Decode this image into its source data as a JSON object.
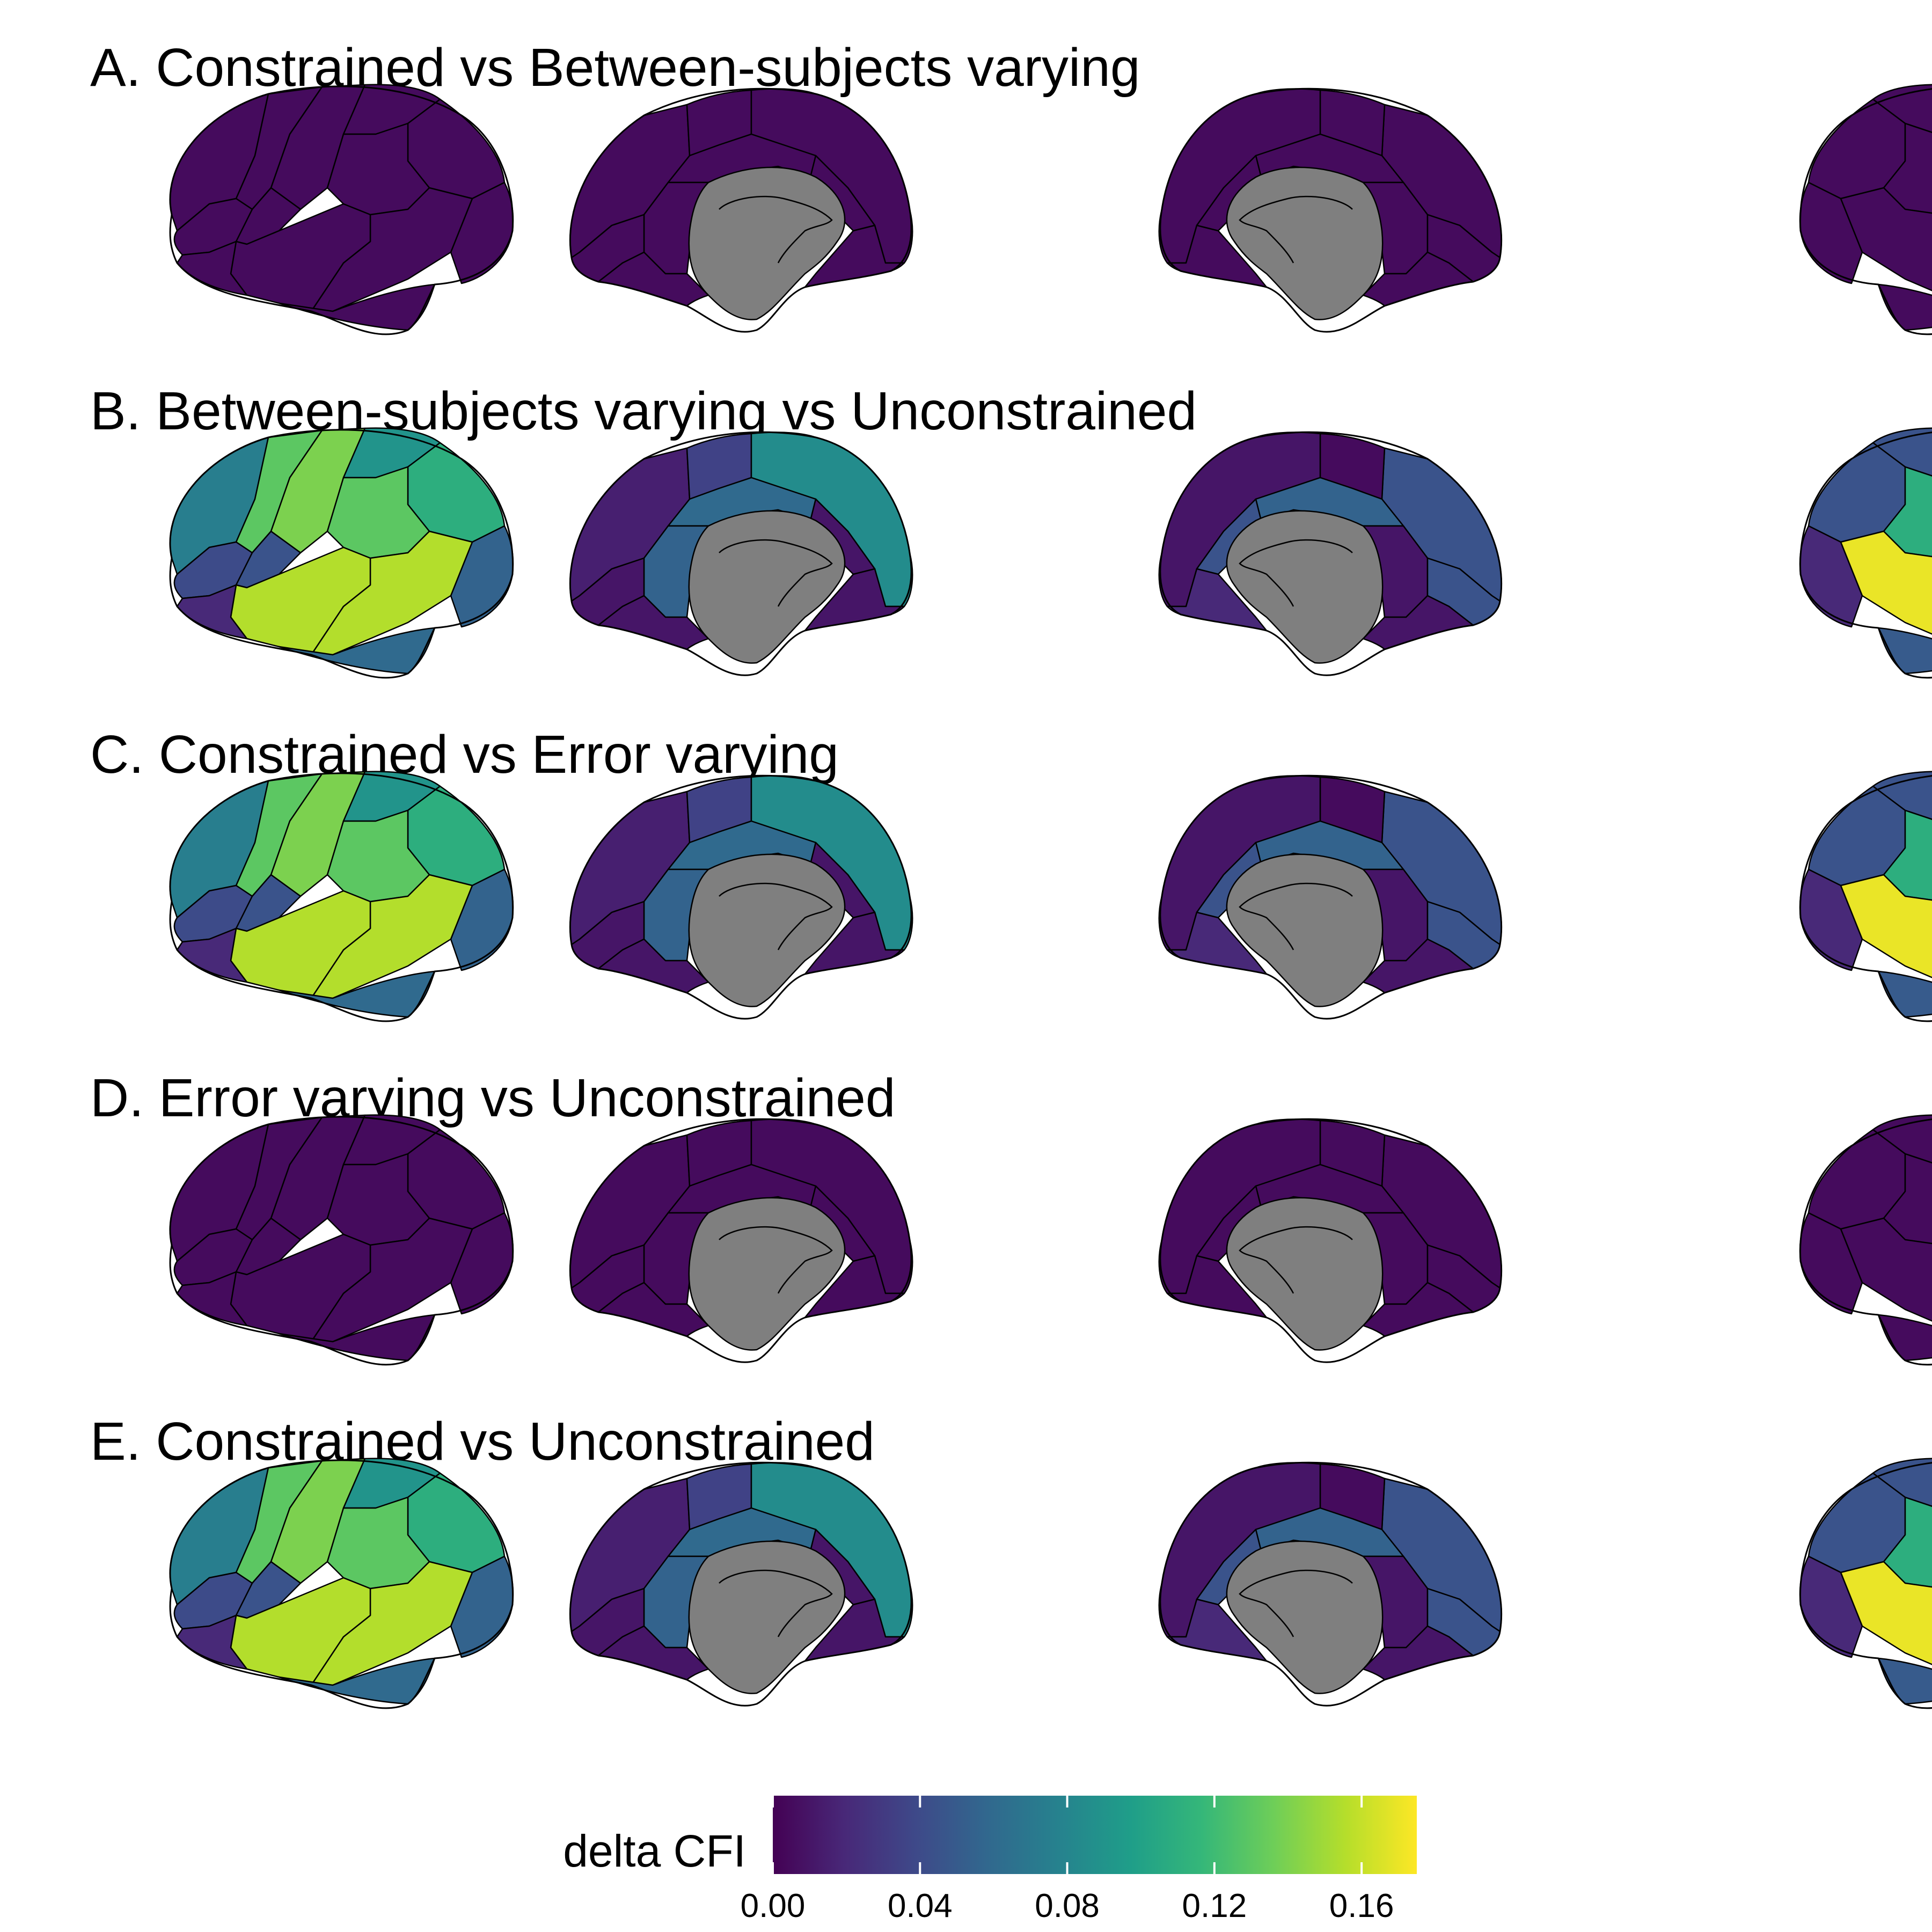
{
  "colors": {
    "viridis": [
      "#440154",
      "#482878",
      "#3e4989",
      "#31688e",
      "#26828e",
      "#1f9e89",
      "#35b779",
      "#6ece58",
      "#b5de2b",
      "#fde725"
    ],
    "medial_wall": "#7f7f7f"
  },
  "view_order": [
    "lateral-left",
    "medial-left",
    "medial-right",
    "lateral-right"
  ],
  "panels": [
    {
      "title": "A. Constrained vs Between-subjects varying",
      "values": {
        "lateral-left": [
          0.005,
          0.005,
          0.005,
          0.005,
          0.005,
          0.005,
          0.005,
          0.005,
          0.005,
          0.005,
          0.005,
          0.005,
          0.005
        ],
        "medial-left": [
          0.005,
          0.005,
          0.005,
          0.005,
          0.005,
          0.005,
          0.005,
          0.005,
          0.005
        ],
        "medial-right": [
          0.005,
          0.005,
          0.005,
          0.005,
          0.005,
          0.005,
          0.005,
          0.005,
          0.005
        ],
        "lateral-right": [
          0.005,
          0.005,
          0.005,
          0.005,
          0.005,
          0.005,
          0.005,
          0.005,
          0.005,
          0.005,
          0.005,
          0.005,
          0.005
        ]
      }
    },
    {
      "title": "B. Between-subjects varying vs Unconstrained",
      "values": {
        "lateral-left": [
          0.075,
          0.13,
          0.14,
          0.09,
          0.11,
          0.13,
          0.04,
          0.045,
          0.055,
          0.155,
          0.155,
          0.06,
          0.02
        ],
        "medial-left": [
          0.015,
          0.035,
          0.085,
          0.06,
          0.01,
          0.055,
          0.01,
          0.01,
          0.01
        ],
        "medial-right": [
          0.045,
          0.005,
          0.01,
          0.055,
          0.045,
          0.01,
          0.045,
          0.01,
          0.02
        ],
        "lateral-right": [
          0.05,
          0.05,
          0.065,
          0.045,
          0.045,
          0.11,
          0.06,
          0.03,
          0.02,
          0.17,
          0.14,
          0.05,
          0.01
        ]
      }
    },
    {
      "title": "C. Constrained vs Error varying",
      "values": {
        "lateral-left": [
          0.075,
          0.13,
          0.14,
          0.09,
          0.11,
          0.13,
          0.04,
          0.045,
          0.055,
          0.155,
          0.155,
          0.06,
          0.02
        ],
        "medial-left": [
          0.015,
          0.035,
          0.085,
          0.06,
          0.01,
          0.055,
          0.01,
          0.01,
          0.01
        ],
        "medial-right": [
          0.045,
          0.005,
          0.01,
          0.055,
          0.045,
          0.01,
          0.045,
          0.01,
          0.02
        ],
        "lateral-right": [
          0.05,
          0.05,
          0.065,
          0.045,
          0.045,
          0.11,
          0.06,
          0.03,
          0.02,
          0.17,
          0.14,
          0.05,
          0.01
        ]
      }
    },
    {
      "title": "D. Error varying vs Unconstrained",
      "values": {
        "lateral-left": [
          0.005,
          0.005,
          0.005,
          0.005,
          0.005,
          0.005,
          0.005,
          0.005,
          0.005,
          0.005,
          0.005,
          0.005,
          0.005
        ],
        "medial-left": [
          0.005,
          0.005,
          0.005,
          0.005,
          0.005,
          0.005,
          0.005,
          0.005,
          0.005
        ],
        "medial-right": [
          0.005,
          0.005,
          0.005,
          0.005,
          0.005,
          0.005,
          0.005,
          0.005,
          0.005
        ],
        "lateral-right": [
          0.005,
          0.005,
          0.005,
          0.005,
          0.005,
          0.005,
          0.005,
          0.005,
          0.005,
          0.005,
          0.005,
          0.005,
          0.005
        ]
      }
    },
    {
      "title": "E. Constrained vs Unconstrained",
      "values": {
        "lateral-left": [
          0.075,
          0.13,
          0.14,
          0.09,
          0.11,
          0.13,
          0.04,
          0.045,
          0.055,
          0.155,
          0.155,
          0.06,
          0.02
        ],
        "medial-left": [
          0.015,
          0.035,
          0.085,
          0.06,
          0.01,
          0.055,
          0.01,
          0.01,
          0.01
        ],
        "medial-right": [
          0.045,
          0.005,
          0.01,
          0.055,
          0.045,
          0.01,
          0.045,
          0.01,
          0.02
        ],
        "lateral-right": [
          0.05,
          0.05,
          0.065,
          0.045,
          0.045,
          0.11,
          0.06,
          0.03,
          0.02,
          0.17,
          0.14,
          0.05,
          0.01
        ]
      }
    }
  ],
  "legend": {
    "label": "delta CFI",
    "min": 0,
    "max": 0.175,
    "ticks": [
      0,
      0.04,
      0.08,
      0.12,
      0.16
    ],
    "tick_labels": [
      "0.00",
      "0.04",
      "0.08",
      "0.12",
      "0.16"
    ]
  }
}
